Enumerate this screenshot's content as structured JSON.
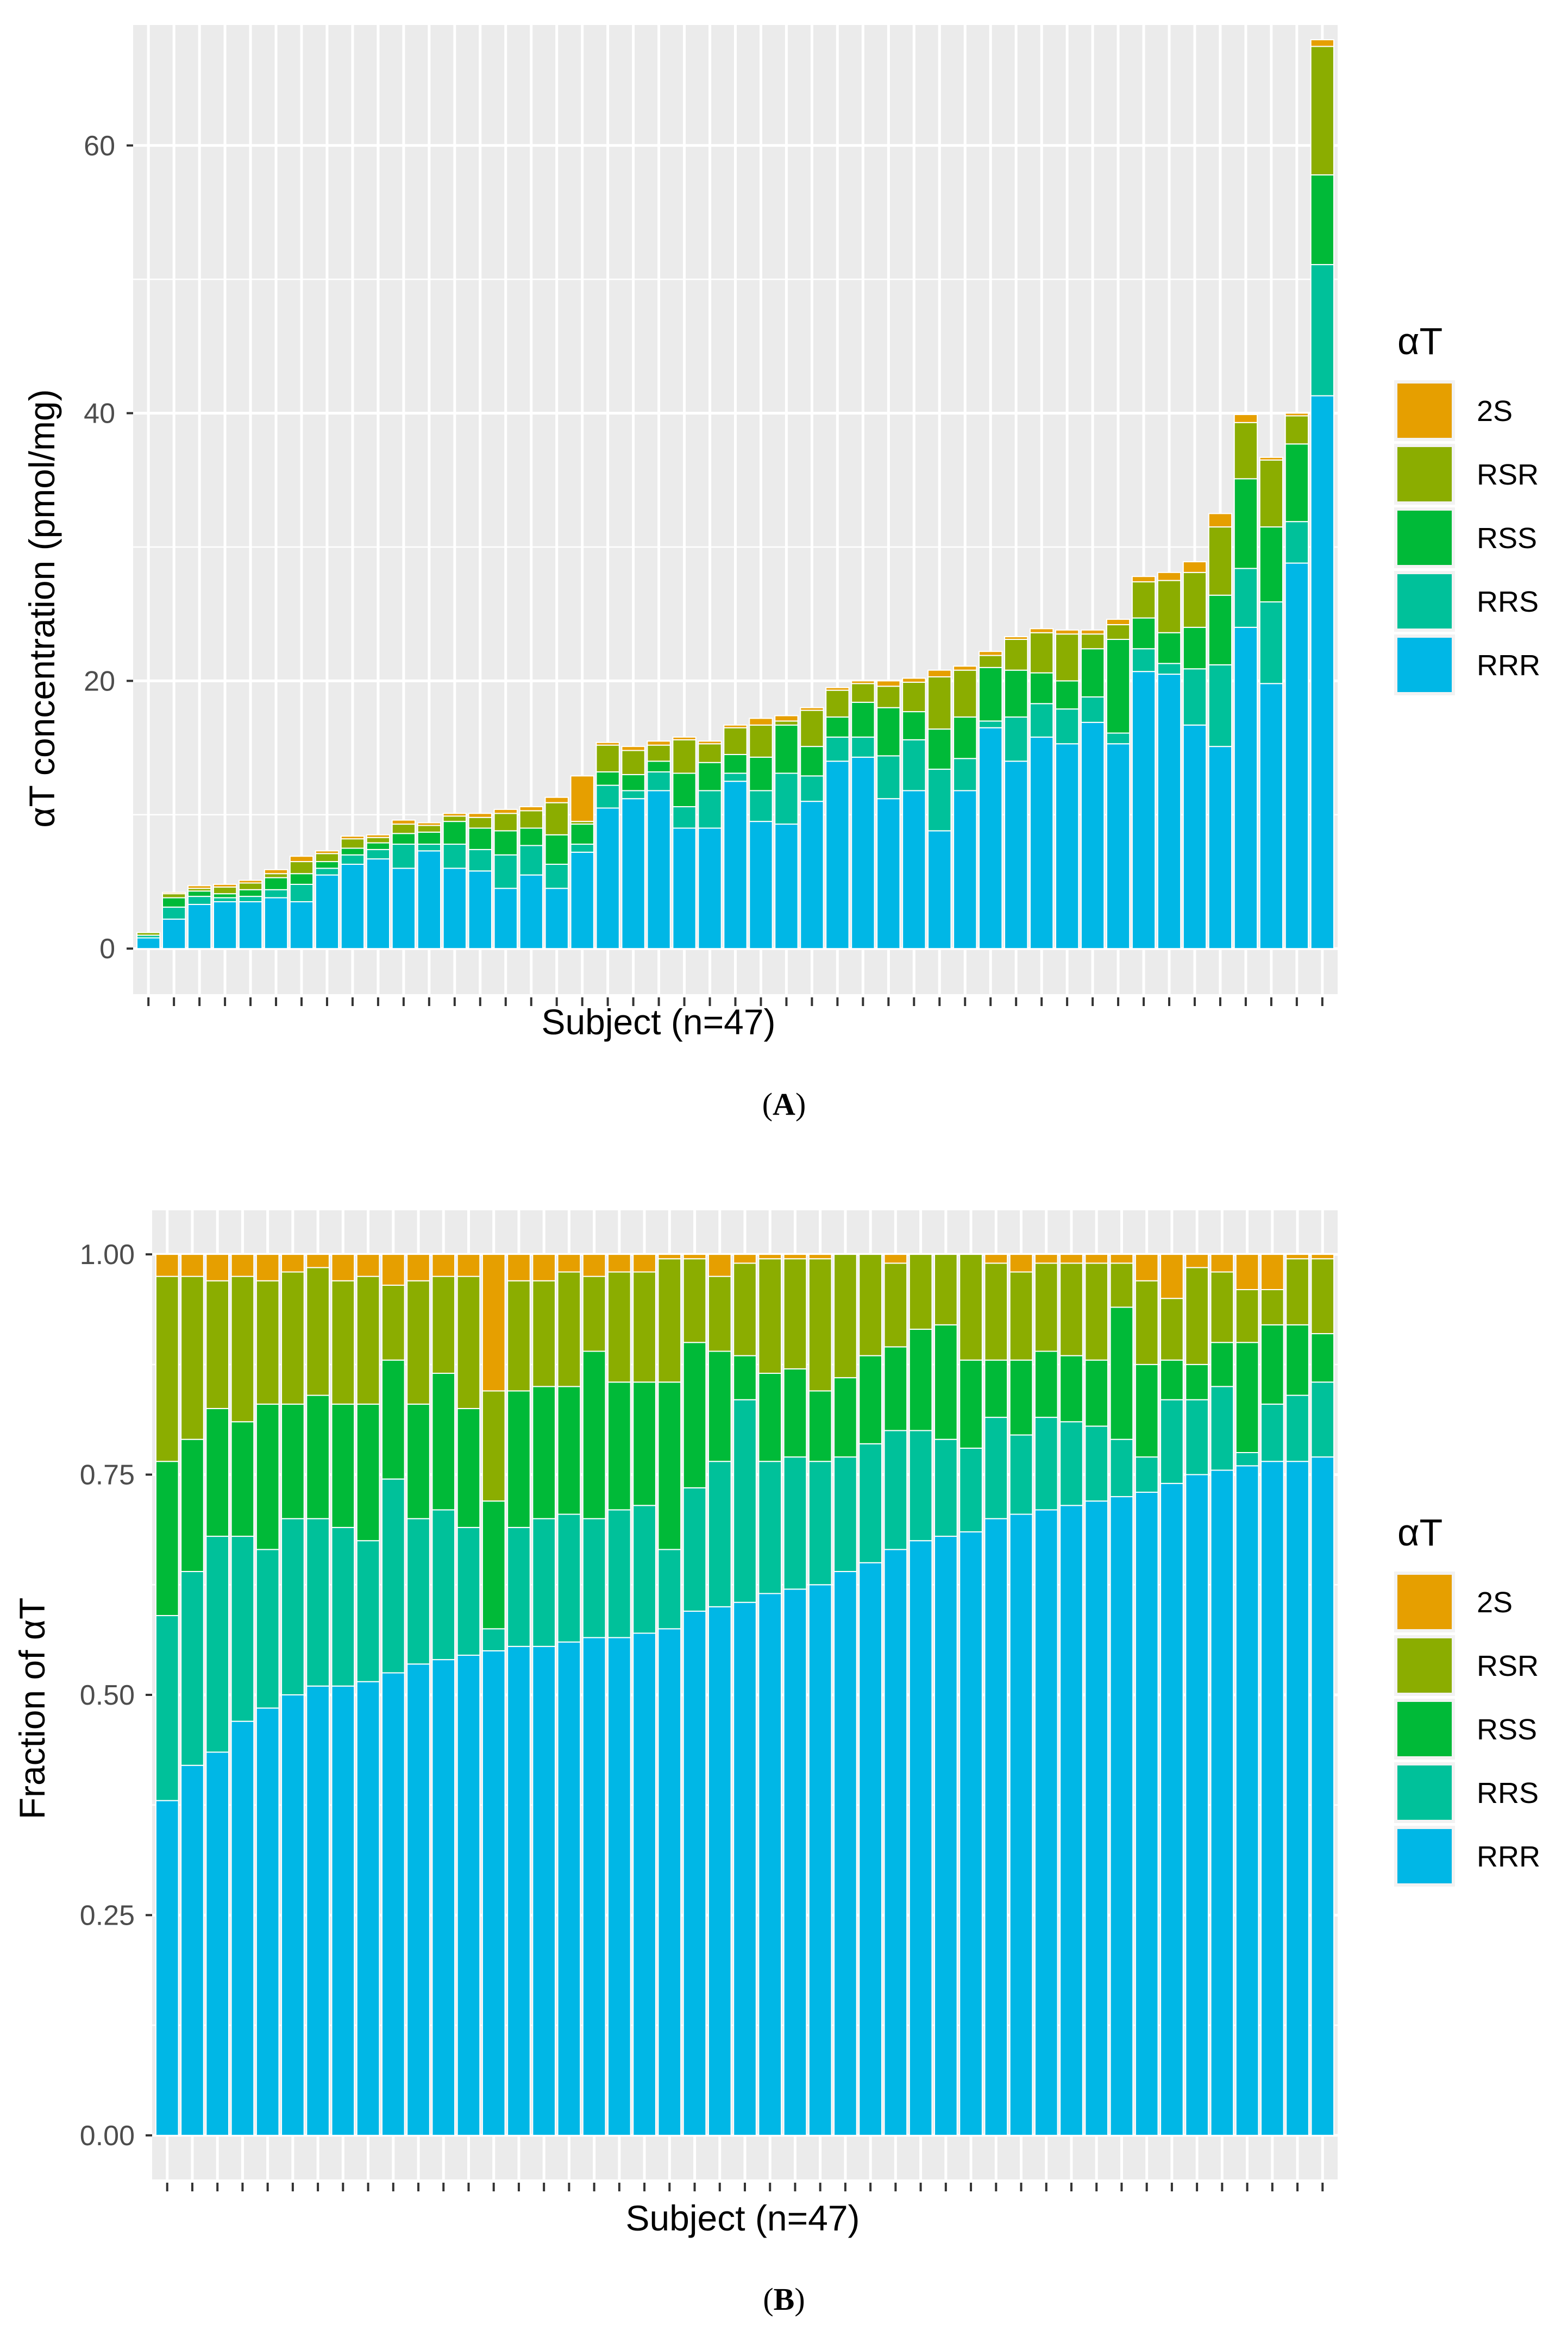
{
  "colors": {
    "2S": "#E69F00",
    "RSR": "#8BAD00",
    "RSS": "#00BA38",
    "RRS": "#00C19A",
    "RRR": "#00B7E6",
    "panel": "#EBEBEB"
  },
  "panels": [
    {
      "caption_letter": "A",
      "legend_title": "αT",
      "legend_items": [
        "2S",
        "RSR",
        "RSS",
        "RRS",
        "RRR"
      ],
      "chart_data": {
        "type": "bar",
        "stacked": true,
        "title": "",
        "xlabel": "Subject (n=47)",
        "ylabel": "αT concentration (pmol/mg)",
        "ylim": [
          -3.4,
          69
        ],
        "yticks": [
          0,
          20,
          40,
          60
        ],
        "ytick_labels": [
          "0",
          "20",
          "40",
          "60"
        ],
        "n_categories": 47,
        "stack_order": [
          "RRR",
          "RRS",
          "RSS",
          "RSR",
          "2S"
        ],
        "series": [
          {
            "name": "RRR",
            "values": [
              0.8,
              2.2,
              3.3,
              3.5,
              3.5,
              3.8,
              3.5,
              5.5,
              6.3,
              6.7,
              6.0,
              7.3,
              6.0,
              5.8,
              4.5,
              5.5,
              4.5,
              7.2,
              10.5,
              11.2,
              11.8,
              9.0,
              9.0,
              12.5,
              9.5,
              9.3,
              11.0,
              14.0,
              14.3,
              11.2,
              11.8,
              8.8,
              11.8,
              16.5,
              14.0,
              15.8,
              15.3,
              16.9,
              15.3,
              20.7,
              20.5,
              16.7,
              15.1,
              24.0,
              19.8,
              28.8,
              41.3
            ]
          },
          {
            "name": "RRS",
            "values": [
              0.2,
              0.9,
              0.6,
              0.3,
              0.4,
              0.6,
              1.3,
              0.5,
              0.7,
              0.7,
              1.8,
              0.5,
              1.8,
              1.6,
              2.5,
              2.2,
              1.8,
              0.6,
              1.7,
              0.6,
              1.4,
              1.6,
              2.8,
              0.6,
              2.3,
              3.8,
              1.9,
              1.8,
              1.5,
              3.2,
              3.8,
              4.6,
              2.4,
              0.5,
              3.3,
              2.5,
              2.6,
              1.9,
              0.8,
              1.7,
              0.8,
              4.2,
              6.1,
              4.4,
              6.1,
              3.1,
              9.8
            ]
          },
          {
            "name": "RSS",
            "values": [
              0.0,
              0.7,
              0.4,
              0.3,
              0.5,
              0.9,
              0.8,
              0.5,
              0.5,
              0.5,
              0.8,
              0.9,
              1.7,
              1.6,
              1.8,
              1.3,
              2.2,
              1.5,
              1.0,
              1.2,
              0.8,
              2.5,
              2.1,
              1.4,
              2.5,
              3.6,
              2.2,
              1.5,
              2.6,
              3.6,
              2.1,
              3.0,
              3.1,
              4.0,
              3.5,
              2.3,
              2.1,
              3.6,
              7.0,
              2.3,
              2.3,
              3.1,
              5.2,
              6.7,
              5.6,
              5.8,
              6.7
            ]
          },
          {
            "name": "RSR",
            "values": [
              0.2,
              0.3,
              0.2,
              0.5,
              0.5,
              0.3,
              0.9,
              0.6,
              0.7,
              0.4,
              0.7,
              0.5,
              0.4,
              0.8,
              1.3,
              1.3,
              2.4,
              0.2,
              2.0,
              1.8,
              1.2,
              2.5,
              1.4,
              2.0,
              2.4,
              0.3,
              2.7,
              2.0,
              1.4,
              1.6,
              2.2,
              3.9,
              3.5,
              0.9,
              2.3,
              3.0,
              3.5,
              1.1,
              1.1,
              2.7,
              3.9,
              4.1,
              5.1,
              4.2,
              5.0,
              2.1,
              9.6
            ]
          },
          {
            "name": "2S",
            "values": [
              0.0,
              0.1,
              0.2,
              0.2,
              0.2,
              0.3,
              0.4,
              0.2,
              0.2,
              0.2,
              0.3,
              0.2,
              0.2,
              0.3,
              0.3,
              0.3,
              0.4,
              3.4,
              0.2,
              0.3,
              0.3,
              0.2,
              0.2,
              0.2,
              0.5,
              0.4,
              0.2,
              0.2,
              0.2,
              0.4,
              0.3,
              0.5,
              0.3,
              0.3,
              0.2,
              0.3,
              0.3,
              0.3,
              0.4,
              0.4,
              0.6,
              0.8,
              1.0,
              0.6,
              0.2,
              0.2,
              0.5
            ]
          }
        ]
      }
    },
    {
      "caption_letter": "B",
      "legend_title": "αT",
      "legend_items": [
        "2S",
        "RSR",
        "RSS",
        "RRS",
        "RRR"
      ],
      "chart_data": {
        "type": "bar",
        "stacked": true,
        "title": "",
        "xlabel": "Subject (n=47)",
        "ylabel": "Fraction of αT",
        "ylim": [
          -0.05,
          1.05
        ],
        "yticks": [
          0,
          0.25,
          0.5,
          0.75,
          1
        ],
        "ytick_labels": [
          "0.00",
          "0.25",
          "0.50",
          "0.75",
          "1.00"
        ],
        "n_categories": 47,
        "stack_order": [
          "RRR",
          "RRS",
          "RSS",
          "RSR",
          "2S"
        ],
        "series": [
          {
            "name": "RRR",
            "values": [
              0.38,
              0.42,
              0.435,
              0.47,
              0.485,
              0.5,
              0.51,
              0.51,
              0.515,
              0.525,
              0.535,
              0.54,
              0.545,
              0.55,
              0.555,
              0.555,
              0.56,
              0.565,
              0.565,
              0.57,
              0.575,
              0.595,
              0.6,
              0.605,
              0.615,
              0.62,
              0.625,
              0.64,
              0.65,
              0.665,
              0.675,
              0.68,
              0.685,
              0.7,
              0.705,
              0.71,
              0.715,
              0.72,
              0.725,
              0.73,
              0.74,
              0.75,
              0.755,
              0.76,
              0.765,
              0.765,
              0.77
            ]
          },
          {
            "name": "RRS",
            "values": [
              0.21,
              0.22,
              0.245,
              0.21,
              0.18,
              0.2,
              0.19,
              0.18,
              0.16,
              0.22,
              0.165,
              0.17,
              0.145,
              0.025,
              0.135,
              0.145,
              0.145,
              0.135,
              0.145,
              0.145,
              0.09,
              0.14,
              0.165,
              0.23,
              0.15,
              0.15,
              0.14,
              0.13,
              0.135,
              0.135,
              0.125,
              0.11,
              0.095,
              0.115,
              0.09,
              0.105,
              0.095,
              0.085,
              0.065,
              0.04,
              0.095,
              0.085,
              0.095,
              0.015,
              0.065,
              0.075,
              0.085
            ]
          },
          {
            "name": "RSS",
            "values": [
              0.175,
              0.15,
              0.145,
              0.13,
              0.165,
              0.13,
              0.14,
              0.14,
              0.155,
              0.135,
              0.13,
              0.155,
              0.135,
              0.145,
              0.155,
              0.15,
              0.145,
              0.19,
              0.145,
              0.14,
              0.19,
              0.165,
              0.125,
              0.05,
              0.1,
              0.1,
              0.08,
              0.09,
              0.1,
              0.095,
              0.115,
              0.13,
              0.1,
              0.065,
              0.085,
              0.075,
              0.075,
              0.075,
              0.15,
              0.105,
              0.045,
              0.04,
              0.05,
              0.125,
              0.09,
              0.08,
              0.055
            ]
          },
          {
            "name": "RSR",
            "values": [
              0.21,
              0.185,
              0.145,
              0.165,
              0.14,
              0.15,
              0.145,
              0.14,
              0.145,
              0.085,
              0.14,
              0.11,
              0.15,
              0.125,
              0.125,
              0.12,
              0.13,
              0.085,
              0.125,
              0.125,
              0.14,
              0.095,
              0.085,
              0.105,
              0.13,
              0.125,
              0.15,
              0.14,
              0.115,
              0.095,
              0.085,
              0.08,
              0.12,
              0.11,
              0.1,
              0.1,
              0.105,
              0.11,
              0.05,
              0.095,
              0.07,
              0.11,
              0.08,
              0.06,
              0.04,
              0.075,
              0.085
            ]
          },
          {
            "name": "2S",
            "values": [
              0.025,
              0.025,
              0.03,
              0.025,
              0.03,
              0.02,
              0.015,
              0.03,
              0.025,
              0.035,
              0.03,
              0.025,
              0.025,
              0.155,
              0.03,
              0.03,
              0.02,
              0.025,
              0.02,
              0.02,
              0.005,
              0.005,
              0.025,
              0.01,
              0.005,
              0.005,
              0.005,
              0.0,
              0.0,
              0.01,
              0.0,
              0.0,
              0.0,
              0.01,
              0.02,
              0.01,
              0.01,
              0.01,
              0.01,
              0.03,
              0.05,
              0.015,
              0.02,
              0.04,
              0.04,
              0.005,
              0.005
            ]
          }
        ]
      }
    }
  ]
}
